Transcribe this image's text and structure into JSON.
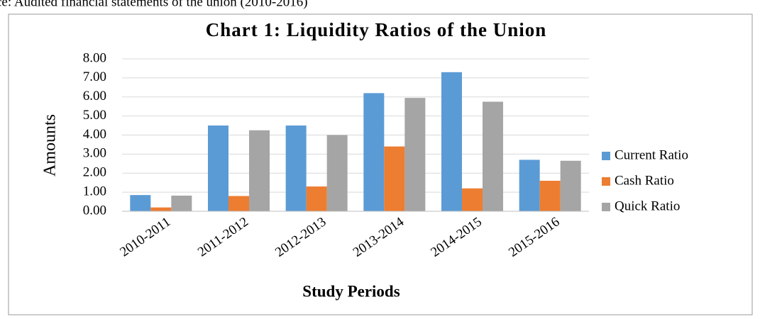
{
  "source_note": "ce: Audited financial statements of the union (2010-2016)",
  "chart_data": {
    "type": "bar",
    "title": "Chart  1: Liquidity Ratios of the Union",
    "x_label": "Study Periods",
    "y_label": "Amounts",
    "categories": [
      "2010-2011",
      "2011-2012",
      "2012-2013",
      "2013-2014",
      "2014-2015",
      "2015-2016"
    ],
    "series": [
      {
        "name": "Current Ratio",
        "color": "#5b9bd5",
        "values": [
          0.85,
          4.5,
          4.5,
          6.2,
          7.3,
          2.7
        ]
      },
      {
        "name": "Cash Ratio",
        "color": "#ed7d31",
        "values": [
          0.2,
          0.8,
          1.3,
          3.4,
          1.2,
          1.6
        ]
      },
      {
        "name": "Quick Ratio",
        "color": "#a5a5a5",
        "values": [
          0.82,
          4.25,
          4.0,
          5.95,
          5.75,
          2.65
        ]
      }
    ],
    "ylim": [
      0,
      8
    ],
    "yticks": [
      {
        "value": 0,
        "label": "0.00"
      },
      {
        "value": 1,
        "label": "1.00"
      },
      {
        "value": 2,
        "label": "2.00"
      },
      {
        "value": 3,
        "label": "3.00"
      },
      {
        "value": 4,
        "label": "4.00"
      },
      {
        "value": 5,
        "label": "5.00"
      },
      {
        "value": 6,
        "label": "6.00"
      },
      {
        "value": 7,
        "label": "7.00"
      },
      {
        "value": 8,
        "label": "8.00"
      }
    ],
    "grid": true,
    "legend": "right"
  }
}
